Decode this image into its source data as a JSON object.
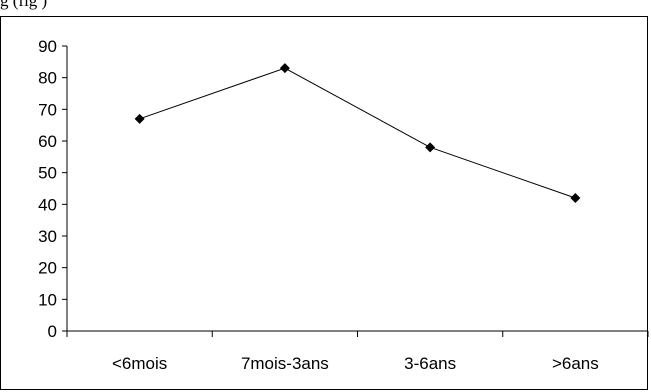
{
  "caption_fragment": "g                                                                              (fig    )",
  "chart_data": {
    "type": "line",
    "categories": [
      "<6mois",
      "7mois-3ans",
      "3-6ans",
      ">6ans"
    ],
    "series": [
      {
        "values": [
          67,
          83,
          58,
          42
        ]
      }
    ],
    "y_ticks": [
      "0",
      "10",
      "20",
      "30",
      "40",
      "50",
      "60",
      "70",
      "80",
      "90"
    ],
    "ylim": [
      0,
      90
    ],
    "title": "",
    "xlabel": "",
    "ylabel": "",
    "grid": false,
    "legend": "none",
    "colors": {
      "line": "#000000",
      "marker": "#000000",
      "axis": "#000000"
    }
  }
}
